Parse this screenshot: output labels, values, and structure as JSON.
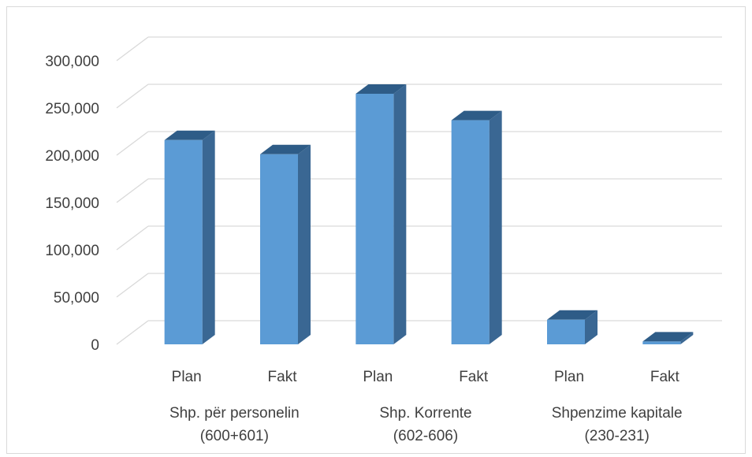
{
  "chart_data": {
    "type": "bar",
    "style": "3d-column",
    "categories": [
      "Plan",
      "Fakt",
      "Plan",
      "Fakt",
      "Plan",
      "Fakt"
    ],
    "groups": [
      {
        "label_line1": "Shp. për personelin",
        "label_line2": "(600+601)",
        "members": [
          0,
          1
        ]
      },
      {
        "label_line1": "Shp. Korrente",
        "label_line2": "(602-606)",
        "members": [
          2,
          3
        ]
      },
      {
        "label_line1": "Shpenzime kapitale",
        "label_line2": "(230-231)",
        "members": [
          4,
          5
        ]
      }
    ],
    "series": [
      {
        "values": [
          216000,
          201000,
          265000,
          237000,
          26000,
          3000
        ]
      }
    ],
    "y_ticks": [
      "0",
      "50,000",
      "100,000",
      "150,000",
      "200,000",
      "250,000",
      "300,000"
    ],
    "ylim": [
      0,
      300000
    ],
    "grid": true,
    "legend": "none",
    "colors": {
      "bar_front": "#5b9bd5",
      "bar_side": "#3a6793",
      "bar_top": "#2e5c87",
      "grid": "#d9d9d9",
      "text": "#404040"
    }
  }
}
